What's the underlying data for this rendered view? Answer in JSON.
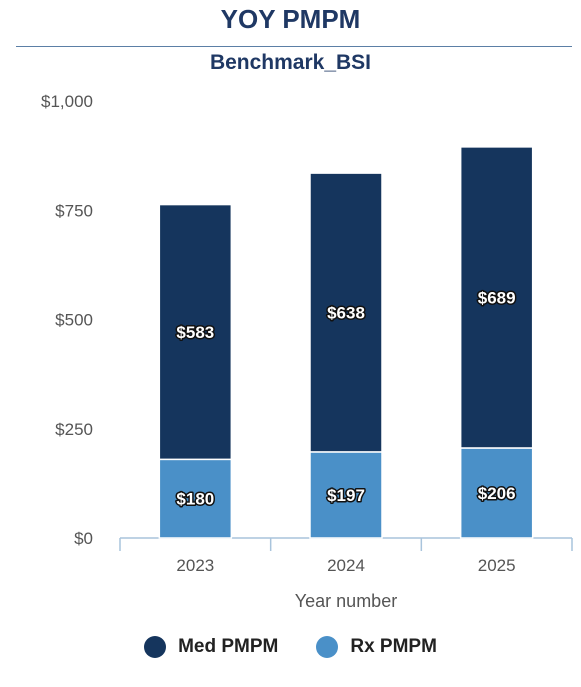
{
  "header": {
    "title": "YOY PMPM",
    "subtitle": "Benchmark_BSI"
  },
  "chart_data": {
    "type": "bar",
    "stacked": true,
    "categories": [
      "2023",
      "2024",
      "2025"
    ],
    "series": [
      {
        "name": "Rx PMPM",
        "values": [
          180,
          197,
          206
        ],
        "labels": [
          "$180",
          "$197",
          "$206"
        ],
        "color": "#4a90c8"
      },
      {
        "name": "Med PMPM",
        "values": [
          583,
          638,
          689
        ],
        "labels": [
          "$583",
          "$638",
          "$689"
        ],
        "color": "#15355d"
      }
    ],
    "title": "Benchmark_BSI",
    "xlabel": "Year number",
    "ylabel": "",
    "ylim": [
      0,
      1000
    ],
    "yticks": [
      0,
      250,
      500,
      750,
      1000
    ],
    "ytick_labels": [
      "$0",
      "$250",
      "$500",
      "$750",
      "$1,000"
    ],
    "grid": false,
    "legend_position": "bottom"
  },
  "legend": {
    "items": [
      {
        "label": "Med PMPM",
        "color": "#15355d"
      },
      {
        "label": "Rx PMPM",
        "color": "#4a90c8"
      }
    ]
  }
}
